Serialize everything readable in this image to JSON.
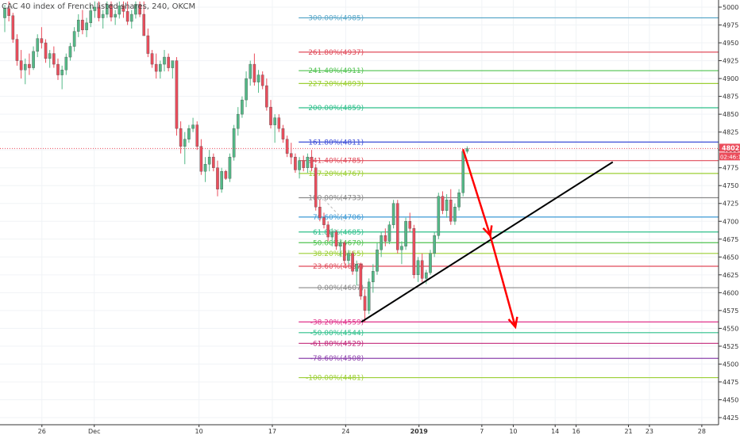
{
  "header": {
    "title": "CAC 40 index of French listed shares, 240, OKCM"
  },
  "chart_data": {
    "type": "candlestick",
    "title": "CAC 40 index of French listed shares, 240, OKCM",
    "ylim": [
      4415,
      5010
    ],
    "y_ticks": [
      4425,
      4450,
      4475,
      4500,
      4525,
      4550,
      4575,
      4600,
      4625,
      4650,
      4675,
      4700,
      4725,
      4750,
      4775,
      4800,
      4825,
      4850,
      4875,
      4900,
      4925,
      4950,
      4975,
      5000
    ],
    "x_ticks": [
      {
        "label": "26",
        "day": -7
      },
      {
        "label": "Dec",
        "day": -2
      },
      {
        "label": "10",
        "day": 8
      },
      {
        "label": "17",
        "day": 15
      },
      {
        "label": "24",
        "day": 22
      },
      {
        "label": "2019",
        "day": 29
      },
      {
        "label": "7",
        "day": 35
      },
      {
        "label": "10",
        "day": 38
      },
      {
        "label": "14",
        "day": 42
      },
      {
        "label": "16",
        "day": 44
      },
      {
        "label": "21",
        "day": 49
      },
      {
        "label": "23",
        "day": 51
      },
      {
        "label": "28",
        "day": 56
      }
    ],
    "x_day_min": -11,
    "x_day_max": 57.6,
    "last_price": {
      "value": 4802,
      "label": "4802",
      "countdown": "02:46:1"
    },
    "fib_levels": [
      {
        "label": "300.00%(4985)",
        "value": 4985,
        "color": "#5ba8c9"
      },
      {
        "label": "261.80%(4937)",
        "value": 4937,
        "color": "#e04b5a"
      },
      {
        "label": "241.40%(4911)",
        "value": 4911,
        "color": "#4fc24f"
      },
      {
        "label": "227.20%(4893)",
        "value": 4893,
        "color": "#9ccf35"
      },
      {
        "label": "200.00%(4859)",
        "value": 4859,
        "color": "#2dbf8a"
      },
      {
        "label": "161.80%(4811)",
        "value": 4811,
        "color": "#3a4bd6"
      },
      {
        "label": "141.40%(4785)",
        "value": 4785,
        "color": "#e04b5a"
      },
      {
        "label": "127.20%(4767)",
        "value": 4767,
        "color": "#9ccf35"
      },
      {
        "label": "100.00%(4733)",
        "value": 4733,
        "color": "#8a8a8a"
      },
      {
        "label": "78.60%(4706)",
        "value": 4706,
        "color": "#3c9ad6"
      },
      {
        "label": "61.80%(4685)",
        "value": 4685,
        "color": "#2dbf8a"
      },
      {
        "label": "50.00%(4670)",
        "value": 4670,
        "color": "#4fc24f"
      },
      {
        "label": "38.20%(4655)",
        "value": 4655,
        "color": "#9ccf35"
      },
      {
        "label": "23.60%(4637)",
        "value": 4637,
        "color": "#e04b5a"
      },
      {
        "label": "0.00%(4607)",
        "value": 4607,
        "color": "#8a8a8a"
      },
      {
        "label": "-38.20%(4559)",
        "value": 4559,
        "color": "#e0308a"
      },
      {
        "label": "-50.00%(4544)",
        "value": 4544,
        "color": "#2dbf8a"
      },
      {
        "label": "-61.80%(4529)",
        "value": 4529,
        "color": "#c2287a"
      },
      {
        "label": "-78.60%(4508)",
        "value": 4508,
        "color": "#8e44ad"
      },
      {
        "label": "-100.00%(4481)",
        "value": 4481,
        "color": "#9ccf35"
      }
    ],
    "fib_start_day": 16,
    "trendline": {
      "from": {
        "day": 23.5,
        "value": 4559
      },
      "to": {
        "day": 47.5,
        "value": 4783
      },
      "color": "#000000"
    },
    "projection_arrows": [
      {
        "from": {
          "day": 33.2,
          "value": 4801
        },
        "to": {
          "day": 35.8,
          "value": 4680
        },
        "color": "#ff0000"
      },
      {
        "from": {
          "day": 35.8,
          "value": 4680
        },
        "to": {
          "day": 38.2,
          "value": 4552
        },
        "color": "#ff0000"
      }
    ],
    "candles_ohlc": [
      [
        4985,
        5003,
        4965,
        4998
      ],
      [
        4998,
        5008,
        4980,
        4988
      ],
      [
        4988,
        4992,
        4950,
        4955
      ],
      [
        4955,
        4962,
        4918,
        4925
      ],
      [
        4925,
        4940,
        4900,
        4912
      ],
      [
        4912,
        4928,
        4892,
        4920
      ],
      [
        4920,
        4935,
        4905,
        4915
      ],
      [
        4915,
        4945,
        4912,
        4938
      ],
      [
        4938,
        4962,
        4930,
        4956
      ],
      [
        4956,
        4972,
        4942,
        4950
      ],
      [
        4950,
        4955,
        4922,
        4928
      ],
      [
        4928,
        4940,
        4915,
        4935
      ],
      [
        4935,
        4945,
        4915,
        4920
      ],
      [
        4920,
        4928,
        4898,
        4905
      ],
      [
        4905,
        4918,
        4885,
        4912
      ],
      [
        4912,
        4935,
        4905,
        4930
      ],
      [
        4930,
        4950,
        4925,
        4945
      ],
      [
        4945,
        4972,
        4938,
        4966
      ],
      [
        4966,
        4990,
        4958,
        4982
      ],
      [
        4982,
        4996,
        4962,
        4968
      ],
      [
        4968,
        4985,
        4958,
        4978
      ],
      [
        4978,
        5003,
        4972,
        4995
      ],
      [
        4995,
        5008,
        4985,
        5000
      ],
      [
        5000,
        5008,
        4980,
        4985
      ],
      [
        4985,
        4996,
        4970,
        4990
      ],
      [
        4990,
        5008,
        4985,
        5004
      ],
      [
        5004,
        5008,
        4980,
        4986
      ],
      [
        4986,
        4996,
        4975,
        4990
      ],
      [
        4990,
        5008,
        4984,
        5002
      ],
      [
        5002,
        5008,
        4985,
        4994
      ],
      [
        4994,
        5008,
        4975,
        4980
      ],
      [
        4980,
        4996,
        4970,
        4990
      ],
      [
        4990,
        5008,
        4984,
        5004
      ],
      [
        5004,
        5008,
        4986,
        4990
      ],
      [
        4990,
        5008,
        4982,
        4960
      ],
      [
        4960,
        4970,
        4930,
        4935
      ],
      [
        4935,
        4940,
        4915,
        4920
      ],
      [
        4920,
        4935,
        4900,
        4910
      ],
      [
        4910,
        4925,
        4900,
        4920
      ],
      [
        4920,
        4940,
        4910,
        4930
      ],
      [
        4930,
        4935,
        4910,
        4915
      ],
      [
        4915,
        4920,
        4900,
        4925
      ],
      [
        4925,
        4930,
        4820,
        4830
      ],
      [
        4830,
        4840,
        4795,
        4805
      ],
      [
        4805,
        4825,
        4780,
        4815
      ],
      [
        4815,
        4835,
        4810,
        4830
      ],
      [
        4830,
        4845,
        4825,
        4835
      ],
      [
        4835,
        4840,
        4800,
        4805
      ],
      [
        4805,
        4815,
        4765,
        4770
      ],
      [
        4770,
        4790,
        4755,
        4780
      ],
      [
        4780,
        4800,
        4770,
        4790
      ],
      [
        4790,
        4795,
        4770,
        4775
      ],
      [
        4775,
        4785,
        4735,
        4745
      ],
      [
        4745,
        4775,
        4740,
        4770
      ],
      [
        4770,
        4772,
        4758,
        4760
      ],
      [
        4760,
        4795,
        4755,
        4790
      ],
      [
        4790,
        4835,
        4785,
        4830
      ],
      [
        4830,
        4860,
        4820,
        4850
      ],
      [
        4850,
        4875,
        4845,
        4870
      ],
      [
        4870,
        4910,
        4860,
        4900
      ],
      [
        4900,
        4925,
        4890,
        4920
      ],
      [
        4920,
        4935,
        4890,
        4895
      ],
      [
        4895,
        4912,
        4880,
        4905
      ],
      [
        4905,
        4910,
        4885,
        4890
      ],
      [
        4890,
        4900,
        4855,
        4860
      ],
      [
        4860,
        4870,
        4830,
        4835
      ],
      [
        4835,
        4850,
        4810,
        4845
      ],
      [
        4845,
        4850,
        4825,
        4830
      ],
      [
        4830,
        4835,
        4810,
        4815
      ],
      [
        4815,
        4820,
        4790,
        4795
      ],
      [
        4795,
        4810,
        4780,
        4790
      ],
      [
        4790,
        4795,
        4768,
        4772
      ],
      [
        4772,
        4790,
        4760,
        4785
      ],
      [
        4785,
        4792,
        4770,
        4775
      ],
      [
        4775,
        4795,
        4768,
        4790
      ],
      [
        4790,
        4800,
        4770,
        4775
      ],
      [
        4775,
        4780,
        4715,
        4720
      ],
      [
        4720,
        4730,
        4700,
        4705
      ],
      [
        4705,
        4712,
        4690,
        4695
      ],
      [
        4695,
        4700,
        4672,
        4678
      ],
      [
        4678,
        4690,
        4665,
        4685
      ],
      [
        4685,
        4688,
        4660,
        4665
      ],
      [
        4665,
        4675,
        4650,
        4670
      ],
      [
        4670,
        4672,
        4640,
        4645
      ],
      [
        4645,
        4660,
        4640,
        4655
      ],
      [
        4655,
        4658,
        4625,
        4630
      ],
      [
        4630,
        4645,
        4610,
        4640
      ],
      [
        4640,
        4642,
        4590,
        4595
      ],
      [
        4595,
        4605,
        4558,
        4575
      ],
      [
        4575,
        4620,
        4570,
        4615
      ],
      [
        4615,
        4640,
        4600,
        4630
      ],
      [
        4630,
        4670,
        4625,
        4660
      ],
      [
        4660,
        4685,
        4650,
        4680
      ],
      [
        4680,
        4690,
        4665,
        4672
      ],
      [
        4672,
        4700,
        4668,
        4695
      ],
      [
        4695,
        4730,
        4690,
        4725
      ],
      [
        4725,
        4730,
        4655,
        4660
      ],
      [
        4660,
        4672,
        4640,
        4665
      ],
      [
        4665,
        4705,
        4660,
        4700
      ],
      [
        4700,
        4712,
        4685,
        4690
      ],
      [
        4690,
        4695,
        4620,
        4625
      ],
      [
        4625,
        4650,
        4615,
        4645
      ],
      [
        4645,
        4655,
        4615,
        4620
      ],
      [
        4620,
        4632,
        4612,
        4628
      ],
      [
        4628,
        4660,
        4625,
        4655
      ],
      [
        4655,
        4685,
        4650,
        4680
      ],
      [
        4680,
        4740,
        4675,
        4735
      ],
      [
        4735,
        4742,
        4710,
        4715
      ],
      [
        4715,
        4738,
        4705,
        4730
      ],
      [
        4730,
        4745,
        4695,
        4700
      ],
      [
        4700,
        4725,
        4695,
        4720
      ],
      [
        4720,
        4745,
        4715,
        4740
      ],
      [
        4740,
        4800,
        4735,
        4798
      ],
      [
        4798,
        4805,
        4795,
        4802
      ]
    ]
  }
}
